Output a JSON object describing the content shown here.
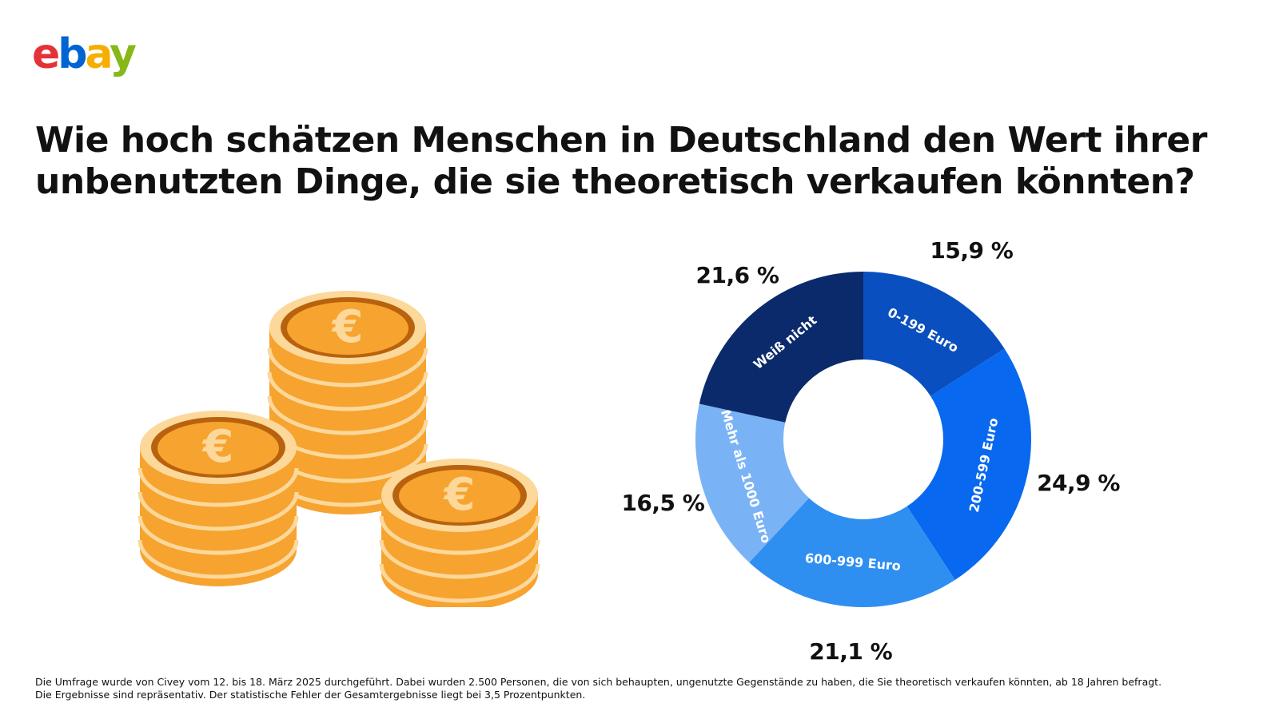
{
  "logo": {
    "text": "ebay",
    "colors": [
      "#e53238",
      "#0064d2",
      "#f5af02",
      "#86b817"
    ]
  },
  "title": {
    "line1": "Wie hoch schätzen Menschen in Deutschland den Wert ihrer",
    "line2": "unbenutzten Dinge, die sie theoretisch verkaufen könnten?"
  },
  "illustration": {
    "name": "euro-coin-stacks-icon",
    "coin_color": "#f7a330",
    "rim_color": "#fcd89a",
    "symbol_color": "#fcd89a"
  },
  "chart_data": {
    "type": "pie",
    "style": "donut",
    "categories": [
      "0-199 Euro",
      "200-599 Euro",
      "600-999 Euro",
      "Mehr als 1000 Euro",
      "Weiß nicht"
    ],
    "values": [
      15.9,
      24.9,
      21.1,
      16.5,
      21.6
    ],
    "value_labels": [
      "15,9 %",
      "24,9 %",
      "21,1 %",
      "16,5 %",
      "21,6 %"
    ],
    "colors": [
      "#0a4fbf",
      "#0868f0",
      "#2f8ff0",
      "#7ab3f5",
      "#0b2a6b"
    ],
    "start": "top, clockwise"
  },
  "footnote": {
    "line1": "Die Umfrage wurde von Civey vom 12. bis 18. März 2025 durchgeführt. Dabei wurden 2.500 Personen, die von sich behaupten, ungenutzte Gegenstände zu haben, die Sie theoretisch verkaufen könnten, ab 18 Jahren befragt.",
    "line2": "Die Ergebnisse sind repräsentativ. Der statistische Fehler der Gesamtergebnisse liegt bei 3,5 Prozentpunkten."
  }
}
